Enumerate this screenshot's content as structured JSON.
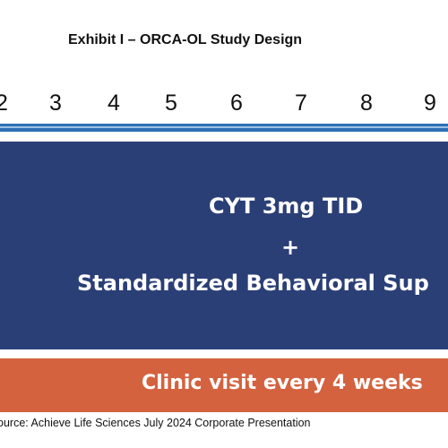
{
  "title": "Exhibit I – ORCA-OL Study Design",
  "timeline": {
    "weeks": [
      "2",
      "3",
      "4",
      "5",
      "6",
      "7",
      "8",
      "9"
    ]
  },
  "treatment": {
    "drug": "CYT 3mg TID",
    "plus": "+",
    "support": "Standardized Behavioral Sup"
  },
  "visits": {
    "label": "Clinic visit every 4 weeks"
  },
  "source": "ource: Achieve Life Sciences July 2024 Corporate Presentation",
  "colors": {
    "timeline_bar": "#2f6fb5",
    "treatment_block": "#2b3f77",
    "visit_block": "#d4623f"
  }
}
